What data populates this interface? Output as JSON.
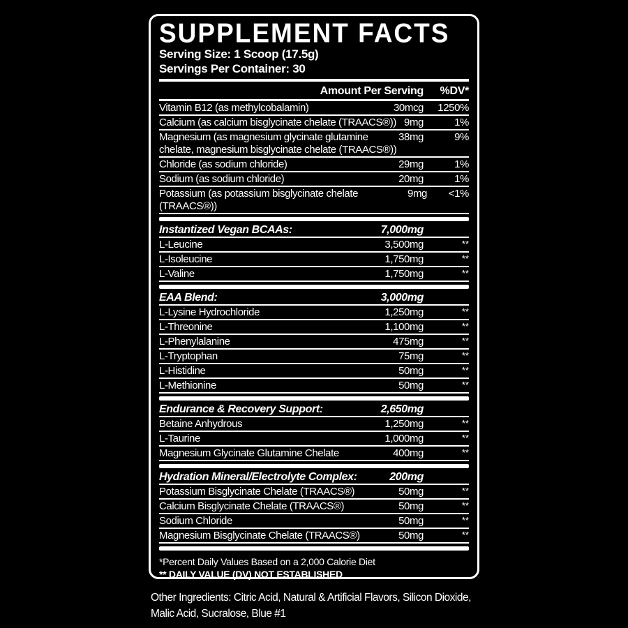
{
  "label": {
    "title": "SUPPLEMENT FACTS",
    "serving_size": "Serving Size: 1 Scoop (17.5g)",
    "servings_per_container": "Servings Per Container: 30",
    "columns": {
      "amount": "Amount Per Serving",
      "dv": "%DV*"
    },
    "sections": [
      {
        "rows": [
          {
            "name": "Vitamin B12 (as methylcobalamin)",
            "amount": "30mcg",
            "dv": "1250%"
          },
          {
            "name": "Calcium (as calcium bisglycinate chelate (TRAACS®))",
            "amount": "9mg",
            "dv": "1%"
          },
          {
            "name": "Magnesium (as magnesium glycinate glutamine\nchelate, magnesium bisglycinate chelate (TRAACS®))",
            "amount": "38mg",
            "dv": "9%"
          },
          {
            "name": "Chloride (as sodium chloride)",
            "amount": "29mg",
            "dv": "1%"
          },
          {
            "name": "Sodium (as sodium chloride)",
            "amount": "20mg",
            "dv": "1%"
          },
          {
            "name": "Potassium (as potassium bisglycinate chelate (TRAACS®))",
            "amount": "9mg",
            "dv": "<1%"
          }
        ]
      },
      {
        "header": {
          "name": "Instantized Vegan BCAAs:",
          "amount": "7,000mg"
        },
        "rows": [
          {
            "name": "L-Leucine",
            "amount": "3,500mg",
            "dv": "**"
          },
          {
            "name": "L-Isoleucine",
            "amount": "1,750mg",
            "dv": "**"
          },
          {
            "name": "L-Valine",
            "amount": "1,750mg",
            "dv": "**"
          }
        ]
      },
      {
        "header": {
          "name": "EAA Blend:",
          "amount": "3,000mg"
        },
        "rows": [
          {
            "name": "L-Lysine Hydrochloride",
            "amount": "1,250mg",
            "dv": "**"
          },
          {
            "name": "L-Threonine",
            "amount": "1,100mg",
            "dv": "**"
          },
          {
            "name": "L-Phenylalanine",
            "amount": "475mg",
            "dv": "**"
          },
          {
            "name": "L-Tryptophan",
            "amount": "75mg",
            "dv": "**"
          },
          {
            "name": "L-Histidine",
            "amount": "50mg",
            "dv": "**"
          },
          {
            "name": "L-Methionine",
            "amount": "50mg",
            "dv": "**"
          }
        ]
      },
      {
        "header": {
          "name": "Endurance & Recovery Support:",
          "amount": "2,650mg"
        },
        "rows": [
          {
            "name": "Betaine Anhydrous",
            "amount": "1,250mg",
            "dv": "**"
          },
          {
            "name": "L-Taurine",
            "amount": "1,000mg",
            "dv": "**"
          },
          {
            "name": "Magnesium Glycinate Glutamine Chelate",
            "amount": "400mg",
            "dv": "**"
          }
        ]
      },
      {
        "header": {
          "name": "Hydration Mineral/Electrolyte Complex:",
          "amount": "200mg"
        },
        "rows": [
          {
            "name": "Potassium Bisglycinate Chelate (TRAACS®)",
            "amount": "50mg",
            "dv": "**"
          },
          {
            "name": "Calcium Bisglycinate Chelate (TRAACS®)",
            "amount": "50mg",
            "dv": "**"
          },
          {
            "name": "Sodium Chloride",
            "amount": "50mg",
            "dv": "**"
          },
          {
            "name": "Magnesium Bisglycinate Chelate (TRAACS®)",
            "amount": "50mg",
            "dv": "**"
          }
        ]
      }
    ],
    "footnotes": [
      "*Percent Daily Values Based on a 2,000 Calorie Diet",
      "** DAILY VALUE (DV) NOT ESTABLISHED"
    ]
  },
  "other_ingredients": "Other Ingredients: Citric Acid, Natural & Artificial Flavors, Silicon Dioxide, Malic Acid, Sucralose, Blue #1"
}
